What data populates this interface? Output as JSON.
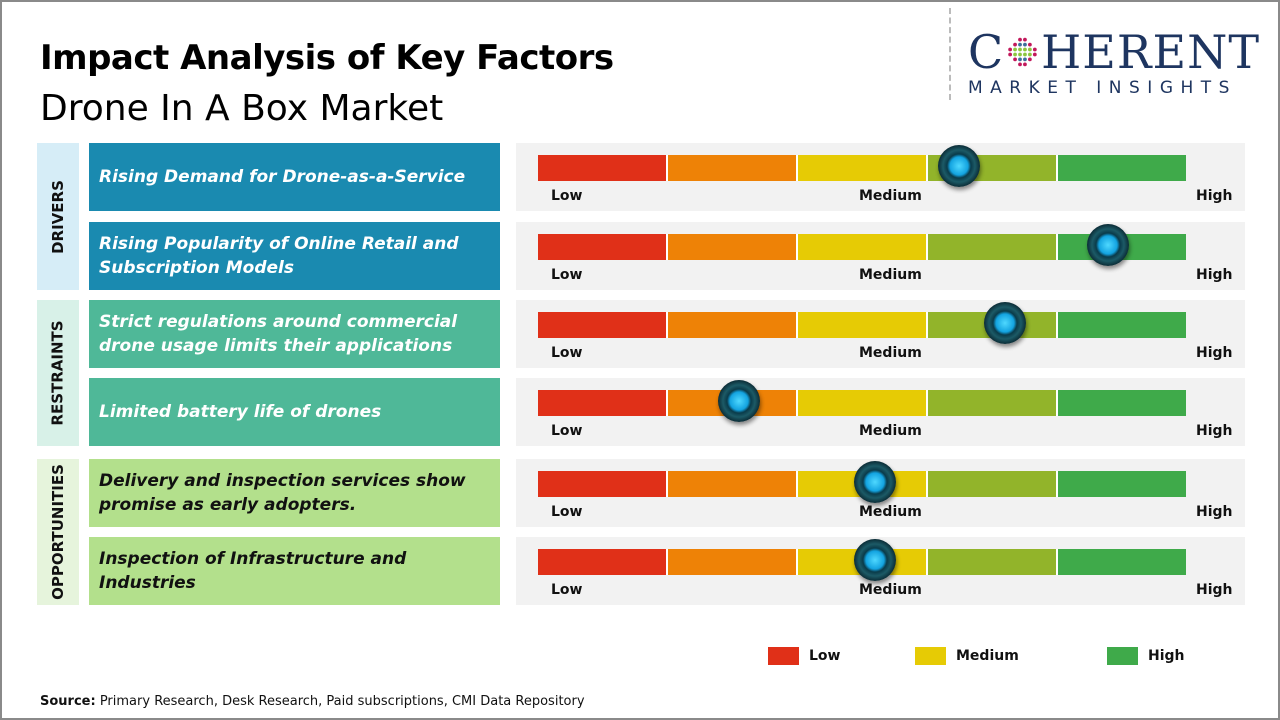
{
  "title": "Impact Analysis of Key Factors",
  "subtitle": "Drone In A Box Market",
  "logo": {
    "line1": "COHERENT",
    "line2": "MARKET INSIGHTS"
  },
  "colors": {
    "low": "#e03018",
    "low_medium": "#ee8206",
    "medium": "#e6cb05",
    "medium_high": "#92b42a",
    "high": "#3faa4a",
    "drivers": "#1a8ab0",
    "restraints": "#4fb898",
    "opportunities": "#b3e08c"
  },
  "chart_data": {
    "type": "gauge-bar",
    "scale": {
      "min_label": "Low",
      "mid_label": "Medium",
      "max_label": "High",
      "range": [
        0,
        1
      ]
    },
    "categories": [
      {
        "name": "DRIVERS",
        "factors": [
          {
            "label": "Rising Demand for Drone-as-a-Service",
            "impact": 0.65
          },
          {
            "label": "Rising Popularity of Online Retail and Subscription Models",
            "impact": 0.88
          }
        ]
      },
      {
        "name": "RESTRAINTS",
        "factors": [
          {
            "label": "Strict regulations around commercial drone usage limits their applications",
            "impact": 0.72
          },
          {
            "label": "Limited battery life of drones",
            "impact": 0.31
          }
        ]
      },
      {
        "name": "OPPORTUNITIES",
        "factors": [
          {
            "label": "Delivery and inspection services show promise as early adopters.",
            "impact": 0.52
          },
          {
            "label": "Inspection of Infrastructure and Industries",
            "impact": 0.52
          }
        ]
      }
    ],
    "legend": [
      {
        "label": "Low",
        "color": "#e03018"
      },
      {
        "label": "Medium",
        "color": "#e6cb05"
      },
      {
        "label": "High",
        "color": "#3faa4a"
      }
    ],
    "legend_position": "bottom-right"
  },
  "source": {
    "label": "Source:",
    "text": " Primary Research, Desk Research, Paid subscriptions, CMI Data Repository"
  }
}
